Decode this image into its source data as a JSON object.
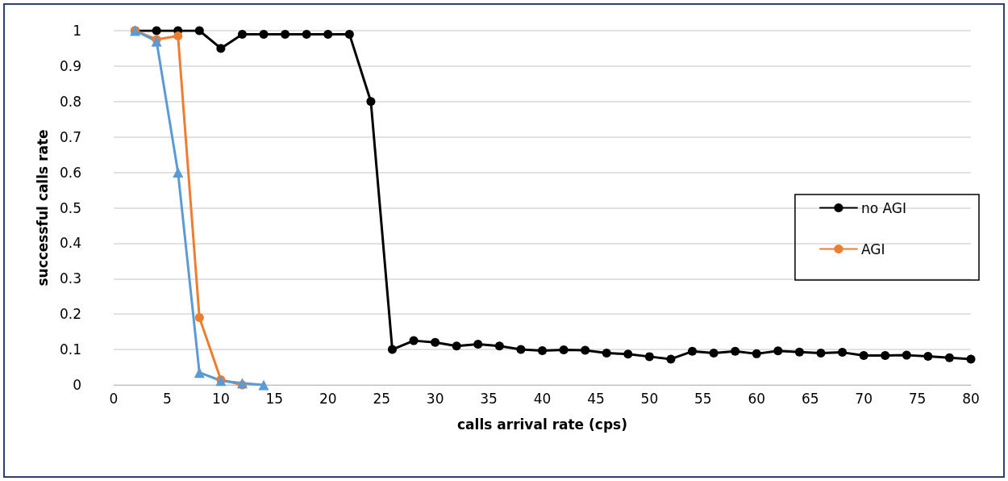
{
  "chart_data": {
    "type": "line",
    "xlabel": "calls arrival rate (cps)",
    "ylabel": "successful calls rate",
    "xlim": [
      0,
      80
    ],
    "xticks": [
      0,
      5,
      10,
      15,
      20,
      25,
      30,
      35,
      40,
      45,
      50,
      55,
      60,
      65,
      70,
      75,
      80
    ],
    "ylim": [
      0,
      1
    ],
    "yticks": [
      0,
      0.1,
      0.2,
      0.3,
      0.4,
      0.5,
      0.6,
      0.7,
      0.8,
      0.9,
      1
    ],
    "grid": "y",
    "legend": "right",
    "series": [
      {
        "name": "no AGI",
        "color": "#000000",
        "marker": "circle",
        "x": [
          2,
          4,
          6,
          8,
          10,
          12,
          14,
          16,
          18,
          20,
          22,
          24,
          26,
          28,
          30,
          32,
          34,
          36,
          38,
          40,
          42,
          44,
          46,
          48,
          50,
          52,
          54,
          56,
          58,
          60,
          62,
          64,
          66,
          68,
          70,
          72,
          74,
          76,
          78,
          80
        ],
        "values": [
          1,
          1,
          1,
          1,
          0.95,
          0.99,
          0.99,
          0.99,
          0.99,
          0.99,
          0.99,
          0.8,
          0.1,
          0.125,
          0.12,
          0.11,
          0.115,
          0.11,
          0.1,
          0.097,
          0.099,
          0.098,
          0.09,
          0.087,
          0.08,
          0.073,
          0.095,
          0.09,
          0.095,
          0.088,
          0.096,
          0.093,
          0.09,
          0.092,
          0.083,
          0.083,
          0.084,
          0.081,
          0.077,
          0.073
        ]
      },
      {
        "name": "AGI",
        "color": "#ed7d31",
        "marker": "circle",
        "x": [
          2,
          4,
          6,
          8,
          10,
          12
        ],
        "values": [
          1,
          0.975,
          0.985,
          0.19,
          0.015,
          0
        ]
      },
      {
        "color": "#5b9bd5",
        "marker": "triangle",
        "x": [
          2,
          4,
          6,
          8,
          10,
          12,
          14
        ],
        "values": [
          1,
          0.97,
          0.6,
          0.035,
          0.012,
          0.005,
          0
        ]
      }
    ]
  }
}
